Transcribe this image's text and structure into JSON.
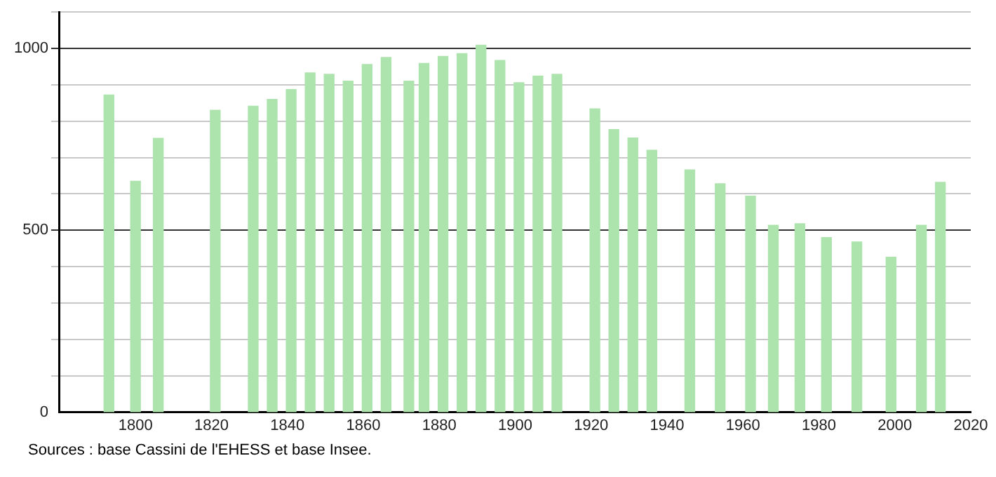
{
  "chart_data": {
    "type": "bar",
    "color": "#ade3ad",
    "x": [
      1793,
      1800,
      1806,
      1821,
      1831,
      1836,
      1841,
      1846,
      1851,
      1856,
      1861,
      1866,
      1872,
      1876,
      1881,
      1886,
      1891,
      1896,
      1901,
      1906,
      1911,
      1921,
      1926,
      1931,
      1936,
      1946,
      1954,
      1962,
      1968,
      1975,
      1982,
      1990,
      1999,
      2007,
      2012
    ],
    "values": [
      872,
      635,
      753,
      830,
      841,
      860,
      887,
      933,
      929,
      910,
      956,
      975,
      910,
      959,
      978,
      986,
      1009,
      967,
      906,
      924,
      929,
      834,
      777,
      754,
      720,
      666,
      628,
      594,
      514,
      518,
      480,
      468,
      426,
      514,
      632
    ],
    "xlim": [
      1780,
      2020
    ],
    "xticks": [
      1800,
      1820,
      1840,
      1860,
      1880,
      1900,
      1920,
      1940,
      1960,
      1980,
      2000,
      2020
    ],
    "ylim": [
      0,
      1100
    ],
    "yticks": [
      0,
      {
        "value": 100,
        "label": null
      },
      {
        "value": 200,
        "label": null
      },
      {
        "value": 300,
        "label": null
      },
      {
        "value": 400,
        "label": null
      },
      500,
      {
        "value": 600,
        "label": null
      },
      {
        "value": 700,
        "label": null
      },
      {
        "value": 800,
        "label": null
      },
      {
        "value": 900,
        "label": null
      },
      1000,
      {
        "value": 1100,
        "label": null
      }
    ],
    "grid": "y",
    "legend": false,
    "annotations": [
      "Sources : base Cassini de l'EHESS et base Insee."
    ]
  }
}
